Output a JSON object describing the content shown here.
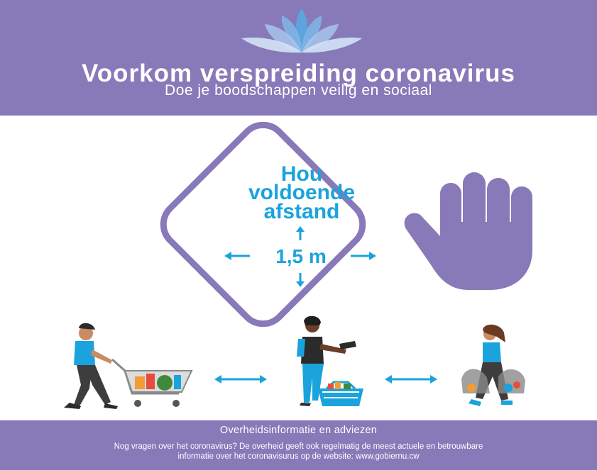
{
  "header": {
    "title": "Voorkom verspreiding coronavirus",
    "subtitle": "Doe je boodschappen veilig en sociaal"
  },
  "sign": {
    "line1": "Hou",
    "line2": "voldoende",
    "line3": "afstand",
    "distance": "1,5 m"
  },
  "footer": {
    "heading": "Overheidsinformatie en adviezen",
    "line1": "Nog vragen over het coronavirus? De overheid geeft ook regelmatig de meest actuele en betrouwbare",
    "line2": "informatie over het coronavisurus op de website: www.gobiernu.cw"
  },
  "colors": {
    "brand_purple": "#8879b8",
    "accent_blue": "#1aa3dc",
    "white": "#ffffff"
  },
  "icons": [
    "lotus-logo-icon",
    "stop-hand-icon",
    "up-arrow-icon",
    "down-arrow-icon",
    "left-arrow-icon",
    "right-arrow-icon",
    "double-arrow-icon",
    "shopping-cart-icon",
    "shopping-basket-icon",
    "shopping-bags-icon"
  ]
}
